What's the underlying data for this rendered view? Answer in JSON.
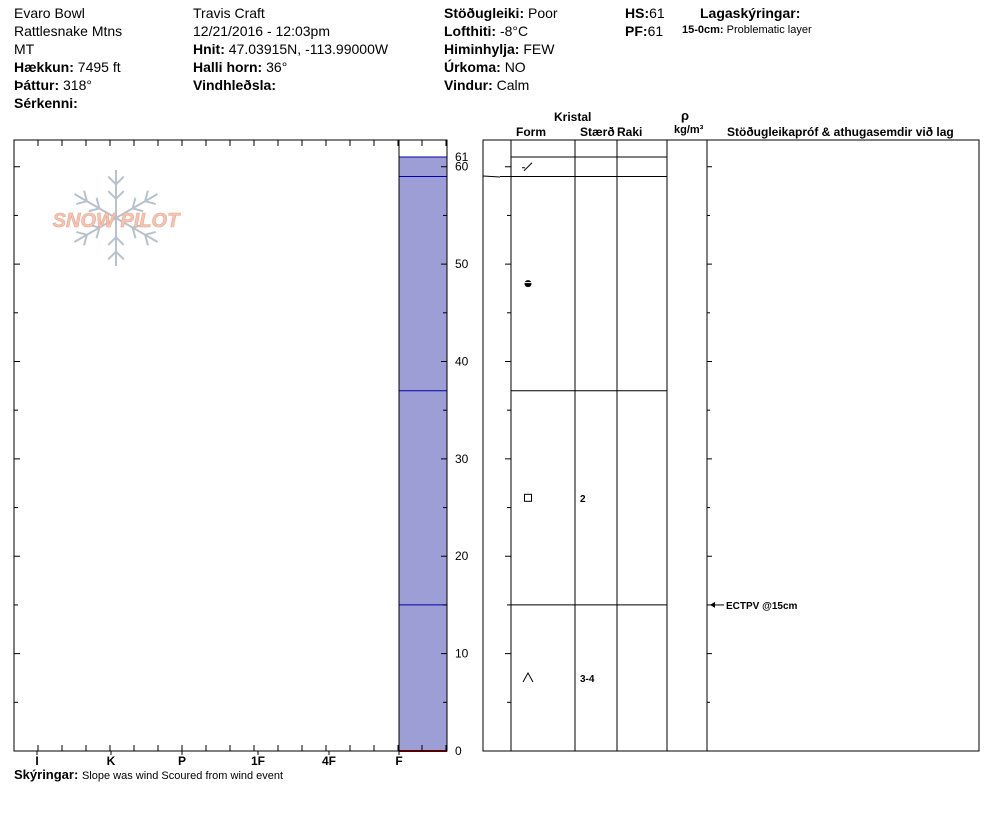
{
  "header": {
    "location": "Evaro Bowl",
    "range": "Rattlesnake Mtns",
    "state": "MT",
    "elevation_label": "Hækkun:",
    "elevation_value": "7495 ft",
    "aspect_label": "Þáttur:",
    "aspect_value": "318°",
    "features_label": "Sérkenni:",
    "observer": "Travis  Craft",
    "datetime": "12/21/2016 - 12:03pm",
    "coords_label": "Hnit:",
    "coords_value": "47.03915N, -113.99000W",
    "slope_label": "Halli horn:",
    "slope_value": "36°",
    "wind_loading_label": "Vindhleðsla:",
    "stability_label": "Stöðugleiki:",
    "stability_value": "Poor",
    "air_temp_label": "Lofthiti:",
    "air_temp_value": "-8°C",
    "sky_label": "Himinhylja:",
    "sky_value": "FEW",
    "precip_label": "Úrkoma:",
    "precip_value": "NO",
    "wind_label": "Vindur:",
    "wind_value": "Calm",
    "hs_label": "HS:",
    "hs_value": "61",
    "pf_label": "PF:",
    "pf_value": "61",
    "layer_notes_label": "Lagaskýringar:",
    "layer_note_range": "15-0cm:",
    "layer_note_text": "Problematic layer"
  },
  "table_headers": {
    "crystal": "Kristal",
    "form": "Form",
    "size": "Stærð",
    "moisture": "Raki",
    "rho": "ρ",
    "density_unit": "kg/m³",
    "tests": "Stöðugleikapróf & athugasemdir við lag"
  },
  "footer": {
    "comments_label": "Skýringar:",
    "comments_text": "Slope was wind Scoured from wind event"
  },
  "logo": {
    "text": "SNOW PILOT"
  },
  "colors": {
    "hardness_fill": "#9e9ed6",
    "layer_line": "#0000aa",
    "ground_line": "#aa0000",
    "logo_text": "#f4c4b4",
    "logo_flake": "#b8c2cc"
  },
  "chart_data": {
    "type": "snow_profile",
    "y_axis": {
      "min": 0,
      "max": 61,
      "ticks": [
        0,
        10,
        20,
        30,
        40,
        50,
        60,
        61
      ]
    },
    "hardness_scale": [
      "I",
      "K",
      "P",
      "1F",
      "4F",
      "F"
    ],
    "layers": [
      {
        "top": 61,
        "bottom": 59,
        "hardness": "F",
        "form": "precipitation-particles",
        "size": "",
        "moisture": ""
      },
      {
        "top": 59,
        "bottom": 37,
        "hardness": "F",
        "form": "melt-freeze",
        "size": "",
        "moisture": ""
      },
      {
        "top": 37,
        "bottom": 15,
        "hardness": "F",
        "form": "faceted",
        "size": "2",
        "moisture": ""
      },
      {
        "top": 15,
        "bottom": 0,
        "hardness": "F",
        "form": "depth-hoar",
        "size": "3-4",
        "moisture": ""
      }
    ],
    "tests": [
      {
        "depth": 15,
        "label": "ECTPV @15cm"
      }
    ]
  }
}
